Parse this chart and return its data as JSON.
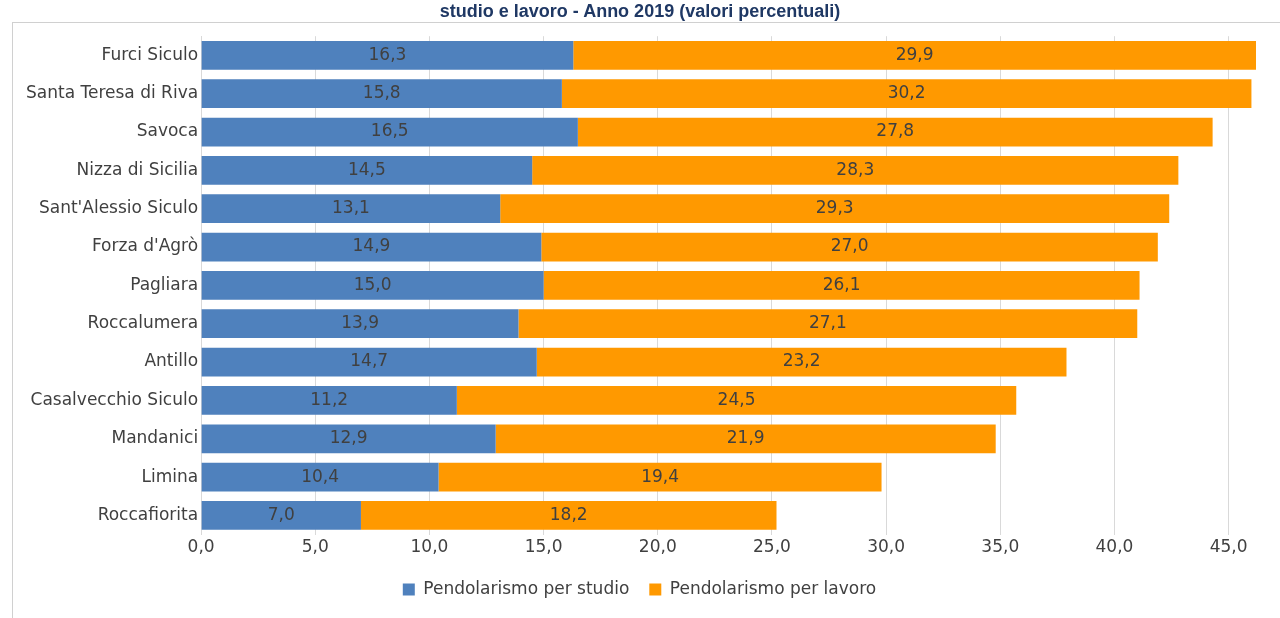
{
  "chart_data": {
    "type": "bar",
    "orientation": "horizontal",
    "stacked": true,
    "title": "studio e lavoro - Anno 2019 (valori percentuali)",
    "categories": [
      "Furci Siculo",
      "Santa Teresa di Riva",
      "Savoca",
      "Nizza di Sicilia",
      "Sant'Alessio Siculo",
      "Forza d'Agrò",
      "Pagliara",
      "Roccalumera",
      "Antillo",
      "Casalvecchio Siculo",
      "Mandanici",
      "Limina",
      "Roccafiorita"
    ],
    "series": [
      {
        "name": "Pendolarismo per studio",
        "color": "#4f81bd",
        "values": [
          16.3,
          15.8,
          16.5,
          14.5,
          13.1,
          14.9,
          15.0,
          13.9,
          14.7,
          11.2,
          12.9,
          10.4,
          7.0
        ],
        "value_labels": [
          "16,3",
          "15,8",
          "16,5",
          "14,5",
          "13,1",
          "14,9",
          "15,0",
          "13,9",
          "14,7",
          "11,2",
          "12,9",
          "10,4",
          "7,0"
        ]
      },
      {
        "name": "Pendolarismo per lavoro",
        "color": "#ff9900",
        "values": [
          29.9,
          30.2,
          27.8,
          28.3,
          29.3,
          27.0,
          26.1,
          27.1,
          23.2,
          24.5,
          21.9,
          19.4,
          18.2
        ],
        "value_labels": [
          "29,9",
          "30,2",
          "27,8",
          "28,3",
          "29,3",
          "27,0",
          "26,1",
          "27,1",
          "23,2",
          "24,5",
          "21,9",
          "19,4",
          "18,2"
        ]
      }
    ],
    "xlim": [
      0,
      46.2
    ],
    "xticks": [
      {
        "value": 0,
        "label": "0,0"
      },
      {
        "value": 5,
        "label": "5,0"
      },
      {
        "value": 10,
        "label": "10,0"
      },
      {
        "value": 15,
        "label": "15,0"
      },
      {
        "value": 20,
        "label": "20,0"
      },
      {
        "value": 25,
        "label": "25,0"
      },
      {
        "value": 30,
        "label": "30,0"
      },
      {
        "value": 35,
        "label": "35,0"
      },
      {
        "value": 40,
        "label": "40,0"
      },
      {
        "value": 45,
        "label": "45,0"
      }
    ],
    "grid": "x",
    "legend": "bottom"
  }
}
